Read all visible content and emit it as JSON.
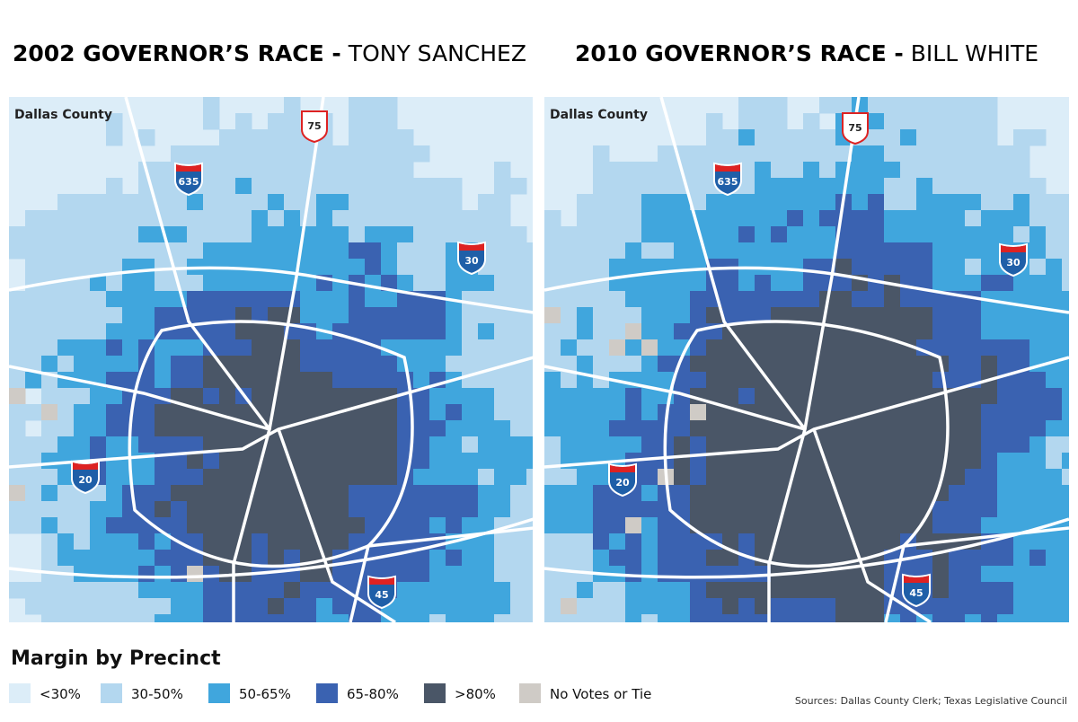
{
  "maps": [
    {
      "title": "2002 GOVERNOR’S RACE -",
      "candidate": "TONY SANCHEZ",
      "region_label": "Dallas County",
      "shields": [
        "75",
        "635",
        "30",
        "20",
        "45"
      ]
    },
    {
      "title": "2010 GOVERNOR’S RACE -",
      "candidate": "BILL WHITE",
      "region_label": "Dallas County",
      "shields": [
        "75",
        "635",
        "30",
        "20",
        "45"
      ]
    }
  ],
  "legend": {
    "title": "Margin by Precinct",
    "items": [
      {
        "label": "<30%",
        "color": "#dcedf8"
      },
      {
        "label": "30-50%",
        "color": "#b3d7ef"
      },
      {
        "label": "50-65%",
        "color": "#40a6dd"
      },
      {
        "label": "65-80%",
        "color": "#3a62b1"
      },
      {
        "label": ">80%",
        "color": "#4a5667"
      },
      {
        "label": "No Votes or Tie",
        "color": "#cfcbc6"
      }
    ]
  },
  "source": "Sources: Dallas County Clerk; Texas Legislative Council"
}
